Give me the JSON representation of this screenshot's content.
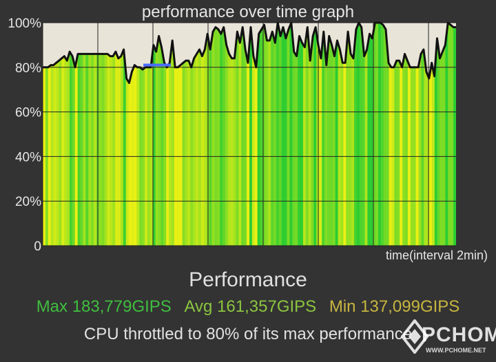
{
  "chart_data": {
    "type": "area",
    "title": "performance over time graph",
    "xlabel": "time(interval 2min)",
    "ylabel": "",
    "ylim": [
      0,
      100
    ],
    "yticks": [
      "0",
      "20%",
      "40%",
      "60%",
      "80%",
      "100%"
    ],
    "ytick_values": [
      0,
      20,
      40,
      60,
      80,
      100
    ],
    "grid": true,
    "average_marker": 81,
    "series": [
      {
        "values": [
          80,
          80,
          80,
          81,
          81,
          82,
          83,
          84,
          85,
          83,
          87,
          85,
          80,
          86,
          86,
          86,
          86,
          86,
          86,
          86,
          86,
          86,
          86,
          86,
          86,
          85,
          85,
          87,
          84,
          85,
          88,
          75,
          73,
          78,
          81,
          80,
          80,
          79,
          80,
          80,
          80,
          90,
          87,
          94,
          89,
          82,
          80,
          82,
          92,
          80,
          80,
          81,
          82,
          83,
          83,
          80,
          84,
          86,
          88,
          85,
          88,
          95,
          88,
          96,
          98,
          97,
          95,
          98,
          90,
          86,
          84,
          84,
          96,
          91,
          98,
          88,
          82,
          98,
          85,
          80,
          95,
          97,
          99,
          92,
          92,
          96,
          91,
          100,
          94,
          98,
          93,
          97,
          100,
          87,
          85,
          94,
          91,
          89,
          98,
          83,
          94,
          98,
          90,
          84,
          96,
          81,
          94,
          90,
          85,
          92,
          88,
          82,
          82,
          96,
          86,
          84,
          97,
          100,
          98,
          85,
          88,
          95,
          93,
          100,
          100,
          100,
          99,
          97,
          82,
          80,
          80,
          83,
          83,
          80,
          86,
          83,
          80,
          80,
          80,
          80,
          86,
          88,
          78,
          75,
          82,
          76,
          93,
          84,
          87,
          90,
          100,
          99,
          98,
          98
        ]
      }
    ]
  },
  "stats": {
    "heading": "Performance",
    "max": "Max 183,779GIPS",
    "avg": "Avg 161,357GIPS",
    "min": "Min 137,099GIPS",
    "throttle_message": "CPU throttled to 80% of its max performance"
  },
  "watermark": {
    "text": "PCHOME",
    "sub": "WWW.PCHOME.NET"
  },
  "colors": {
    "background": "#333333",
    "plot_background": "#e8e4d8",
    "grid": "#222222",
    "line": "#111111",
    "avg_marker": "#4a6cff"
  }
}
